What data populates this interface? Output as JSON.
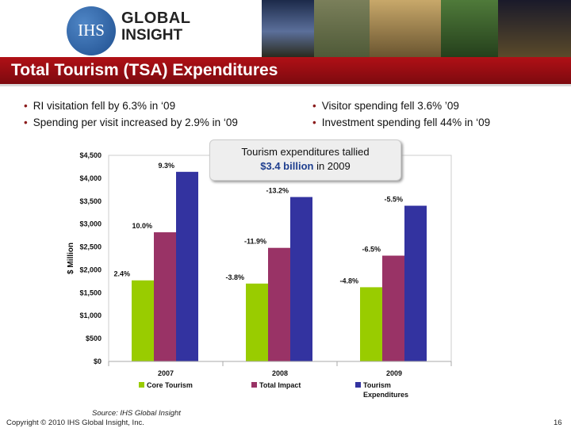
{
  "header": {
    "logo_mark": "IHS",
    "logo_word1": "GLOBAL",
    "logo_word2": "INSIGHT",
    "photo_colors": [
      "#26334d",
      "#5a5f3a",
      "#7a6a3e",
      "#3b5a2a",
      "#2a2a3a"
    ]
  },
  "title": "Total Tourism (TSA) Expenditures",
  "bullets_left": [
    "RI visitation fell by 6.3% in ‘09",
    "Spending per visit increased by 2.9% in ‘09"
  ],
  "bullets_right": [
    "Visitor spending fell 3.6% ’09",
    "Investment spending fell 44% in ‘09"
  ],
  "callout": {
    "line1": "Tourism expenditures tallied",
    "amount": "$3.4 billion",
    "line2_suffix": " in 2009"
  },
  "colors": {
    "core": "#99cc00",
    "total_impact": "#993366",
    "tourism_expenditures": "#3333a0"
  },
  "chart_data": {
    "type": "bar",
    "categories": [
      "2007",
      "2008",
      "2009"
    ],
    "series": [
      {
        "name": "Core Tourism",
        "values": [
          1770,
          1700,
          1620
        ],
        "labels": [
          "2.4%",
          "-3.8%",
          "-4.8%"
        ]
      },
      {
        "name": "Total Impact",
        "values": [
          2820,
          2480,
          2310
        ],
        "labels": [
          "10.0%",
          "-11.9%",
          "-6.5%"
        ]
      },
      {
        "name": "Tourism Expenditures",
        "values": [
          4140,
          3590,
          3400
        ],
        "labels": [
          "9.3%",
          "-13.2%",
          "-5.5%"
        ]
      }
    ],
    "ylabel": "$ Million",
    "ylim": [
      0,
      4500
    ],
    "yticks": [
      0,
      500,
      1000,
      1500,
      2000,
      2500,
      3000,
      3500,
      4000,
      4500
    ],
    "ytick_labels": [
      "$0",
      "$500",
      "$1,000",
      "$1,500",
      "$2,000",
      "$2,500",
      "$3,000",
      "$3,500",
      "$4,000",
      "$4,500"
    ],
    "legend": [
      "Core Tourism",
      "Total Impact",
      "Tourism Expenditures"
    ],
    "legend_position": "bottom",
    "grid": false
  },
  "footer": {
    "source": "Source: IHS Global Insight",
    "copyright": "Copyright © 2010 IHS Global Insight, Inc.",
    "page_number": "16"
  }
}
